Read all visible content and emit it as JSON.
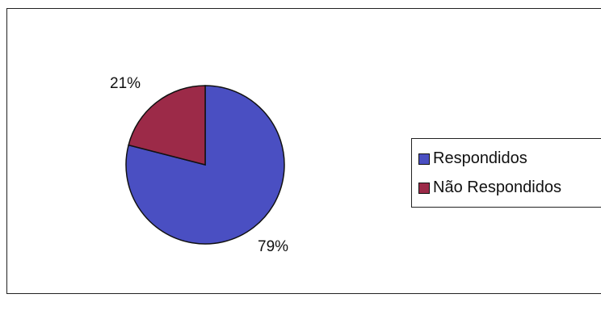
{
  "chart_data": {
    "type": "pie",
    "title": "",
    "slices": [
      {
        "name": "Respondidos",
        "value": 79,
        "label": "79%",
        "color": "#4a4fc2"
      },
      {
        "name": "Não Respondidos",
        "value": 21,
        "label": "21%",
        "color": "#9c2a48"
      }
    ],
    "start_angle_deg": 0,
    "direction": "clockwise",
    "legend_placement": "right"
  },
  "legend": {
    "items": [
      {
        "label": "Respondidos",
        "color": "#4a4fc2"
      },
      {
        "label": "Não Respondidos",
        "color": "#9c2a48"
      }
    ]
  }
}
